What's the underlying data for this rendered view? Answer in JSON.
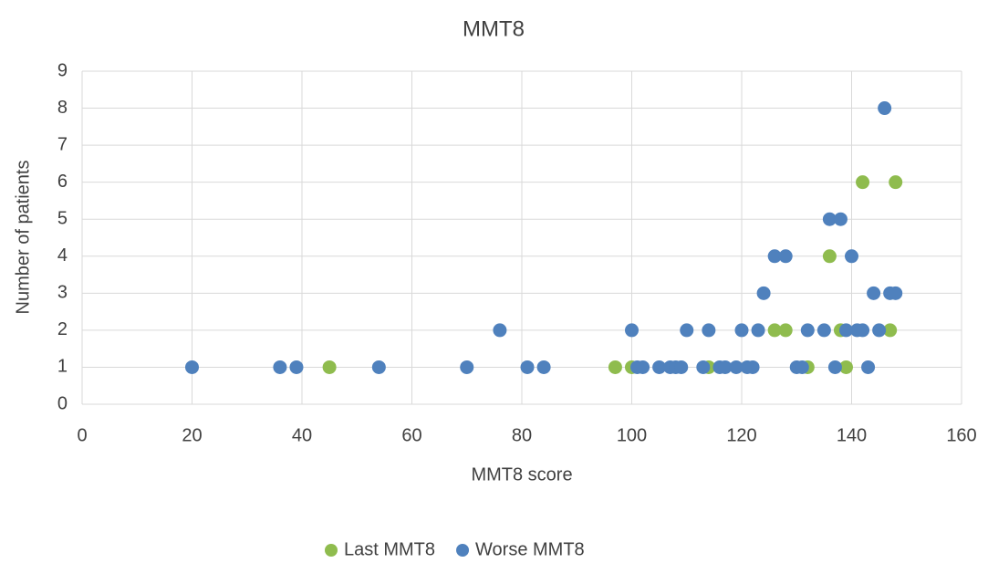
{
  "chart_data": {
    "type": "scatter",
    "title": "MMT8",
    "x_label": "MMT8 score",
    "y_label": "Number of patients",
    "xlim": [
      0,
      160
    ],
    "xticks": [
      0,
      20,
      40,
      60,
      80,
      100,
      120,
      140,
      160
    ],
    "ylim": [
      0,
      9
    ],
    "yticks": [
      0,
      1,
      2,
      3,
      4,
      5,
      6,
      7,
      8,
      9
    ],
    "grid": true,
    "legend": "bottom",
    "series": [
      {
        "name": "Last MMT8",
        "color": "#8fbc4e",
        "x": [
          45,
          97,
          100,
          114,
          126,
          128,
          132,
          136,
          138,
          139,
          142,
          147,
          148
        ],
        "values": [
          1,
          1,
          1,
          1,
          2,
          2,
          1,
          4,
          2,
          1,
          6,
          2,
          6
        ]
      },
      {
        "name": "Worse MMT8",
        "color": "#4f81bd",
        "x": [
          20,
          36,
          39,
          54,
          70,
          76,
          81,
          84,
          100,
          101,
          102,
          105,
          107,
          108,
          109,
          110,
          113,
          114,
          116,
          117,
          119,
          120,
          121,
          122,
          123,
          124,
          126,
          128,
          130,
          131,
          132,
          135,
          136,
          137,
          138,
          139,
          140,
          141,
          142,
          143,
          144,
          145,
          146,
          147,
          148
        ],
        "values": [
          1,
          1,
          1,
          1,
          1,
          2,
          1,
          1,
          2,
          1,
          1,
          1,
          1,
          1,
          1,
          2,
          1,
          2,
          1,
          1,
          1,
          2,
          1,
          1,
          2,
          3,
          4,
          4,
          1,
          1,
          2,
          2,
          5,
          1,
          5,
          2,
          4,
          2,
          2,
          1,
          3,
          2,
          8,
          3,
          3
        ]
      }
    ]
  }
}
